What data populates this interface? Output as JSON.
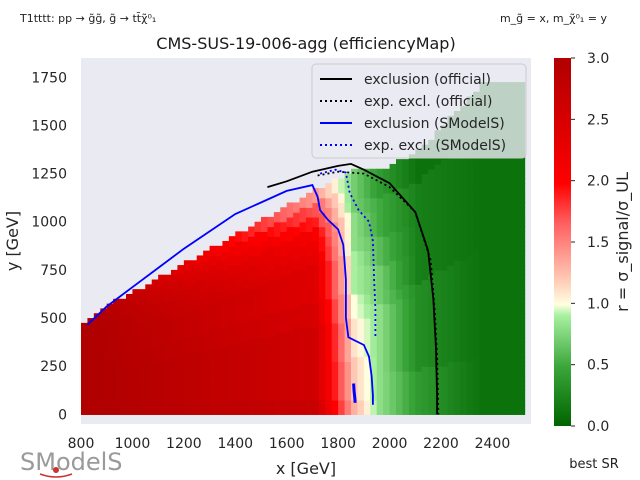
{
  "header": {
    "topleft": "T1tttt: pp → g̃g̃, g̃ → tt̄χ̃⁰₁",
    "topright": "m_g̃ = x, m_χ̃⁰₁ = y",
    "footer_right": "best SR",
    "logo_text": "SModelS"
  },
  "chart_data": {
    "type": "heatmap",
    "title": "CMS-SUS-19-006-agg (efficiencyMap)",
    "xlabel": "x [GeV]",
    "ylabel": "y [GeV]",
    "xlim": [
      800,
      2550
    ],
    "ylim": [
      -50,
      1850
    ],
    "xticks": [
      800,
      1000,
      1200,
      1400,
      1600,
      1800,
      2000,
      2200,
      2400
    ],
    "yticks": [
      0,
      250,
      500,
      750,
      1000,
      1250,
      1500,
      1750
    ],
    "colorbar": {
      "label": "r = σ_signal/σ_UL",
      "min": 0.0,
      "max": 3.0,
      "ticks": [
        0.0,
        0.5,
        1.0,
        1.5,
        2.0,
        2.5,
        3.0
      ]
    },
    "legend": {
      "position": "top-right",
      "entries": [
        {
          "label": "exclusion (official)",
          "color": "#000000",
          "style": "solid"
        },
        {
          "label": "exp. excl. (official)",
          "color": "#000000",
          "style": "dotted"
        },
        {
          "label": "exclusion (SModelS)",
          "color": "#0000ff",
          "style": "solid"
        },
        {
          "label": "exp. excl. (SModelS)",
          "color": "#0000ff",
          "style": "dotted"
        }
      ]
    },
    "curves": {
      "exclusion_official": [
        [
          1525,
          1180
        ],
        [
          1600,
          1210
        ],
        [
          1700,
          1260
        ],
        [
          1800,
          1290
        ],
        [
          1850,
          1300
        ],
        [
          1900,
          1270
        ],
        [
          2000,
          1200
        ],
        [
          2100,
          1050
        ],
        [
          2150,
          850
        ],
        [
          2170,
          600
        ],
        [
          2180,
          350
        ],
        [
          2185,
          100
        ],
        [
          2185,
          0
        ]
      ],
      "exp_excl_official": [
        [
          1720,
          1240
        ],
        [
          1800,
          1260
        ],
        [
          1900,
          1250
        ],
        [
          2000,
          1180
        ],
        [
          2100,
          1050
        ],
        [
          2160,
          800
        ],
        [
          2175,
          550
        ],
        [
          2185,
          300
        ],
        [
          2190,
          0
        ]
      ],
      "exclusion_smodels": [
        [
          825,
          465
        ],
        [
          900,
          560
        ],
        [
          1000,
          660
        ],
        [
          1100,
          760
        ],
        [
          1200,
          860
        ],
        [
          1300,
          950
        ],
        [
          1400,
          1040
        ],
        [
          1500,
          1100
        ],
        [
          1600,
          1160
        ],
        [
          1700,
          1190
        ],
        [
          1720,
          1130
        ],
        [
          1730,
          1060
        ],
        [
          1760,
          1010
        ],
        [
          1800,
          960
        ],
        [
          1820,
          880
        ],
        [
          1830,
          700
        ],
        [
          1830,
          500
        ],
        [
          1840,
          400
        ],
        [
          1900,
          360
        ],
        [
          1920,
          300
        ],
        [
          1930,
          200
        ],
        [
          1935,
          100
        ],
        [
          1935,
          50
        ]
      ],
      "exp_excl_smodels": [
        [
          1730,
          1250
        ],
        [
          1790,
          1270
        ],
        [
          1830,
          1255
        ],
        [
          1845,
          1150
        ],
        [
          1880,
          1060
        ],
        [
          1920,
          1000
        ],
        [
          1935,
          900
        ],
        [
          1940,
          700
        ],
        [
          1945,
          550
        ],
        [
          1945,
          400
        ]
      ],
      "exclusion_smodels_island": [
        [
          1860,
          160
        ],
        [
          1862,
          120
        ],
        [
          1865,
          80
        ],
        [
          1866,
          60
        ]
      ]
    },
    "heat_columns": [
      {
        "x": 800,
        "values": [
          3.0,
          3.0,
          3.0,
          3.0,
          3.0,
          3.0,
          3.0,
          3.0,
          3.0,
          3.0,
          3.0,
          3.0,
          3.0,
          3.0,
          3.0,
          3.0,
          3.0,
          3.0
        ],
        "ymax": 470
      },
      {
        "x": 850,
        "values": [
          3.0,
          3.0,
          3.0,
          3.0,
          3.0,
          3.0,
          3.0,
          3.0,
          3.0,
          3.0,
          3.0,
          3.0,
          3.0,
          3.0,
          3.0,
          3.0,
          3.0,
          3.0
        ],
        "ymax": 520
      },
      {
        "x": 1700,
        "values": [
          2.7,
          2.6,
          2.6,
          2.6,
          2.6,
          2.6,
          2.6,
          2.5,
          2.5,
          2.4,
          2.4,
          2.4,
          2.3,
          2.2,
          2.1,
          1.9,
          1.7,
          1.4
        ],
        "ymax": 1150
      },
      {
        "x": 1850,
        "values": [
          1.3,
          1.2,
          1.2,
          1.2,
          1.1,
          1.1,
          1.1,
          1.0,
          1.0,
          0.9,
          0.9,
          0.9,
          0.8,
          0.8,
          0.8,
          0.7,
          0.7,
          0.7
        ],
        "ymax": 1250
      },
      {
        "x": 1950,
        "values": [
          0.8,
          0.8,
          0.8,
          0.8,
          0.8,
          0.8,
          0.8,
          0.8,
          0.7,
          0.7,
          0.7,
          0.6,
          0.6,
          0.5,
          0.5,
          0.5,
          0.4,
          0.4
        ],
        "ymax": 1250
      },
      {
        "x": 2100,
        "values": [
          0.4,
          0.4,
          0.4,
          0.3,
          0.3,
          0.3,
          0.3,
          0.3,
          0.3,
          0.2,
          0.2,
          0.2,
          0.2,
          0.2,
          0.2,
          0.2,
          0.1,
          0.1
        ],
        "ymax": 1350
      },
      {
        "x": 2350,
        "values": [
          0.1,
          0.1,
          0.1,
          0.1,
          0.1,
          0.1,
          0.1,
          0.1,
          0.1,
          0.1,
          0.1,
          0.1,
          0.1,
          0.1,
          0.1,
          0.1,
          0.1,
          0.1
        ],
        "ymax": 1700
      }
    ]
  }
}
